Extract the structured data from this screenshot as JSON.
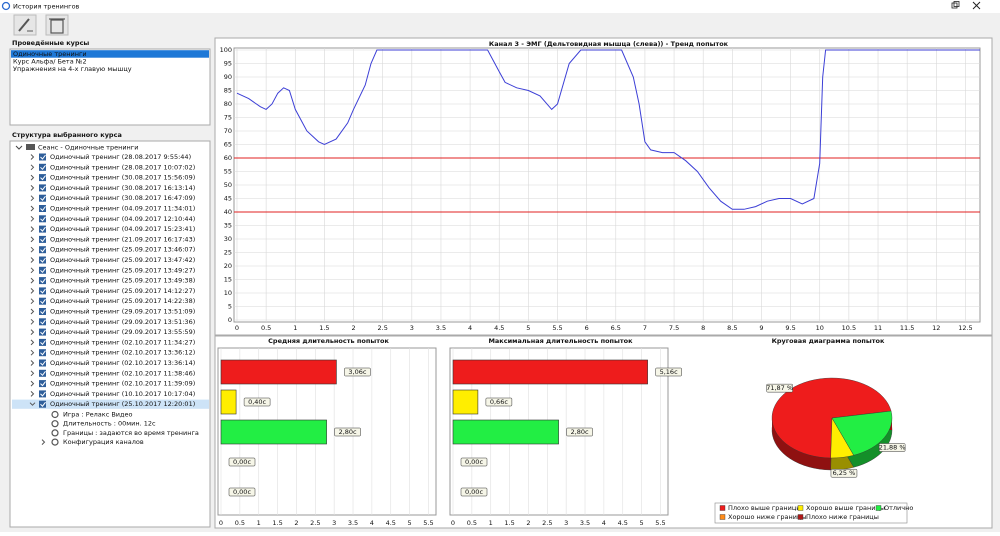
{
  "window": {
    "title": "История тренингов"
  },
  "courses": {
    "title": "Проведённые курсы",
    "items": [
      "Одиночные тренинги",
      "Курс Альфа/ Бета №2",
      "Упражнения на 4-х главую мышцу"
    ]
  },
  "structure": {
    "title": "Структура выбранного курса",
    "root": "Сеанс - Одиночные тренинги",
    "sessions": [
      "Одиночный тренинг (28.08.2017 9:55:44)",
      "Одиночный тренинг (28.08.2017 10:07:02)",
      "Одиночный тренинг (30.08.2017 15:56:09)",
      "Одиночный тренинг (30.08.2017 16:13:14)",
      "Одиночный тренинг (30.08.2017 16:47:09)",
      "Одиночный тренинг (04.09.2017 11:34:01)",
      "Одиночный тренинг (04.09.2017 12:10:44)",
      "Одиночный тренинг (04.09.2017 15:23:41)",
      "Одиночный тренинг (21.09.2017 16:17:43)",
      "Одиночный тренинг (25.09.2017 13:46:07)",
      "Одиночный тренинг (25.09.2017 13:47:42)",
      "Одиночный тренинг (25.09.2017 13:49:27)",
      "Одиночный тренинг (25.09.2017 13:49:38)",
      "Одиночный тренинг (25.09.2017 14:12:27)",
      "Одиночный тренинг (25.09.2017 14:22:38)",
      "Одиночный тренинг (29.09.2017 13:51:09)",
      "Одиночный тренинг (29.09.2017 13:51:36)",
      "Одиночный тренинг (29.09.2017 13:55:59)",
      "Одиночный тренинг (02.10.2017 11:34:27)",
      "Одиночный тренинг (02.10.2017 13:36:12)",
      "Одиночный тренинг (02.10.2017 13:36:14)",
      "Одиночный тренинг (02.10.2017 11:38:46)",
      "Одиночный тренинг (02.10.2017 11:39:09)",
      "Одиночный тренинг (10.10.2017 10:17:04)",
      "Одиночный тренинг (25.10.2017 12:20:01)"
    ],
    "details": [
      "Игра : Релакс Видео",
      "Длительность : 00мин. 12с",
      "Границы : задаются во время тренинга",
      "Конфигурация каналов"
    ]
  },
  "chart_data": [
    {
      "type": "line",
      "title": "Канал 3 - ЭМГ (Дельтовидная мышца (слева)) - Тренд попыток",
      "x": [
        0,
        0.2,
        0.4,
        0.5,
        0.6,
        0.7,
        0.8,
        0.9,
        1.0,
        1.2,
        1.4,
        1.5,
        1.7,
        1.9,
        2.0,
        2.2,
        2.3,
        2.4,
        4.3,
        4.5,
        4.6,
        4.8,
        5.0,
        5.2,
        5.4,
        5.5,
        5.7,
        5.9,
        6.6,
        6.8,
        6.9,
        7.0,
        7.1,
        7.3,
        7.5,
        7.7,
        7.9,
        8.1,
        8.3,
        8.5,
        8.7,
        8.9,
        9.1,
        9.3,
        9.5,
        9.7,
        9.9,
        10.0,
        10.05,
        10.1,
        12.75
      ],
      "series": [
        {
          "color": "#3c3fd6",
          "values": [
            84,
            82,
            79,
            78,
            80,
            84,
            86,
            85,
            78,
            70,
            66,
            65,
            67,
            73,
            78,
            87,
            95,
            100,
            100,
            92,
            88,
            86,
            85,
            83,
            78,
            80,
            95,
            100,
            100,
            90,
            80,
            66,
            63,
            62,
            62,
            59,
            55,
            49,
            44,
            41,
            41,
            42,
            44,
            45,
            45,
            43,
            45,
            58,
            90,
            100,
            100
          ]
        }
      ],
      "thresholds": [
        {
          "value": 60,
          "color": "#e02020"
        },
        {
          "value": 40,
          "color": "#e02020"
        }
      ],
      "xlim": [
        0,
        12.75
      ],
      "ylim": [
        0,
        100
      ],
      "xticks": [
        0,
        0.5,
        1,
        1.5,
        2,
        2.5,
        3,
        3.5,
        4,
        4.5,
        5,
        5.5,
        6,
        6.5,
        7,
        7.5,
        8,
        8.5,
        9,
        9.5,
        10,
        10.5,
        11,
        11.5,
        12,
        12.5
      ],
      "yticks": [
        0,
        5,
        10,
        15,
        20,
        25,
        30,
        35,
        40,
        45,
        50,
        55,
        60,
        65,
        70,
        75,
        80,
        85,
        90,
        95,
        100
      ],
      "grid": true
    },
    {
      "type": "barh",
      "title": "Средняя длительность попыток",
      "categories": [
        null,
        null,
        null,
        null,
        null
      ],
      "values": [
        3.06,
        0.4,
        2.8,
        0,
        0
      ],
      "value_labels": [
        "3,06с",
        "0,40с",
        "2,80с",
        "0,00с",
        "0,00с"
      ],
      "colors": [
        "#ee1c1c",
        "#ffee00",
        "#22ee44",
        "#ff8c1a",
        "#b01818"
      ],
      "xlim": [
        0,
        5.7
      ],
      "xticks": [
        0,
        0.5,
        1,
        1.5,
        2,
        2.5,
        3,
        3.5,
        4,
        4.5,
        5,
        5.5
      ],
      "grid": true
    },
    {
      "type": "barh",
      "title": "Максимальная длительность попыток",
      "categories": [
        null,
        null,
        null,
        null,
        null
      ],
      "values": [
        5.16,
        0.66,
        2.8,
        0,
        0
      ],
      "value_labels": [
        "5,16с",
        "0,66с",
        "2,80с",
        "0,00с",
        "0,00с"
      ],
      "colors": [
        "#ee1c1c",
        "#ffee00",
        "#22ee44",
        "#ff8c1a",
        "#b01818"
      ],
      "xlim": [
        0,
        5.7
      ],
      "xticks": [
        0,
        0.5,
        1,
        1.5,
        2,
        2.5,
        3,
        3.5,
        4,
        4.5,
        5,
        5.5
      ],
      "grid": true
    },
    {
      "type": "pie",
      "title": "Круговая диаграмма попыток",
      "categories": [
        "Плохо выше границы",
        "Хорошо выше границы",
        "Отлично",
        "Хорошо ниже границы",
        "Плохо ниже границы"
      ],
      "values": [
        71.87,
        6.25,
        21.88,
        0,
        0
      ],
      "value_labels": [
        "71,87 %",
        "6,25 %",
        "21,88 %",
        null,
        null
      ],
      "colors": [
        "#ee1c1c",
        "#ffee00",
        "#22ee44",
        "#ff8c1a",
        "#b01818"
      ]
    }
  ]
}
